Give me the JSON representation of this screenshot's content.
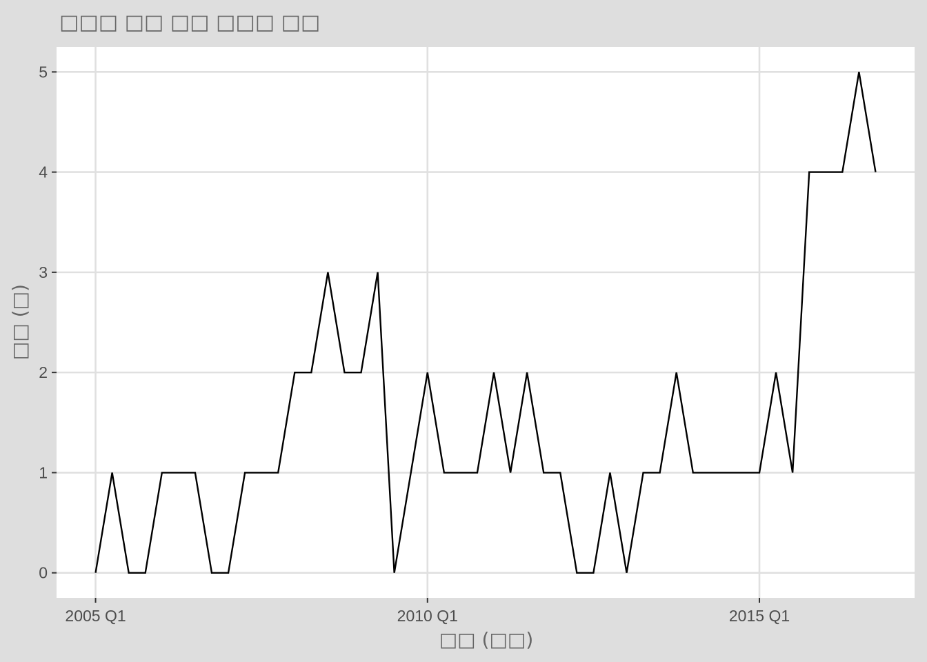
{
  "chart_data": {
    "type": "line",
    "title": "□□□ □□ □□ □□□ □□",
    "xlabel": "□□ (□□)",
    "ylabel": "□□ (□)",
    "x_start": "2005 Q1",
    "x": [
      "2005 Q1",
      "2005 Q2",
      "2005 Q3",
      "2005 Q4",
      "2006 Q1",
      "2006 Q2",
      "2006 Q3",
      "2006 Q4",
      "2007 Q1",
      "2007 Q2",
      "2007 Q3",
      "2007 Q4",
      "2008 Q1",
      "2008 Q2",
      "2008 Q3",
      "2008 Q4",
      "2009 Q1",
      "2009 Q2",
      "2009 Q3",
      "2009 Q4",
      "2010 Q1",
      "2010 Q2",
      "2010 Q3",
      "2010 Q4",
      "2011 Q1",
      "2011 Q2",
      "2011 Q3",
      "2011 Q4",
      "2012 Q1",
      "2012 Q2",
      "2012 Q3",
      "2012 Q4",
      "2013 Q1",
      "2013 Q2",
      "2013 Q3",
      "2013 Q4",
      "2014 Q1",
      "2014 Q2",
      "2014 Q3",
      "2014 Q4",
      "2015 Q1",
      "2015 Q2",
      "2015 Q3",
      "2015 Q4",
      "2016 Q1",
      "2016 Q2",
      "2016 Q3",
      "2016 Q4"
    ],
    "series": [
      {
        "values": [
          0,
          1,
          0,
          0,
          1,
          1,
          1,
          0,
          0,
          1,
          1,
          1,
          2,
          2,
          3,
          2,
          2,
          3,
          0,
          1,
          2,
          1,
          1,
          1,
          2,
          1,
          2,
          1,
          1,
          0,
          0,
          1,
          0,
          1,
          1,
          2,
          1,
          1,
          1,
          1,
          1,
          2,
          1,
          4,
          4,
          4,
          5,
          4
        ]
      }
    ],
    "x_ticks": [
      "2005 Q1",
      "2010 Q1",
      "2015 Q1"
    ],
    "y_ticks": [
      "0",
      "1",
      "2",
      "3",
      "4",
      "5"
    ],
    "ylim": [
      -0.25,
      5.25
    ],
    "grid": true,
    "colors": {
      "panel": "#ffffff",
      "background": "#dedede",
      "grid": "#e0e0e0",
      "line": "#000000"
    }
  }
}
